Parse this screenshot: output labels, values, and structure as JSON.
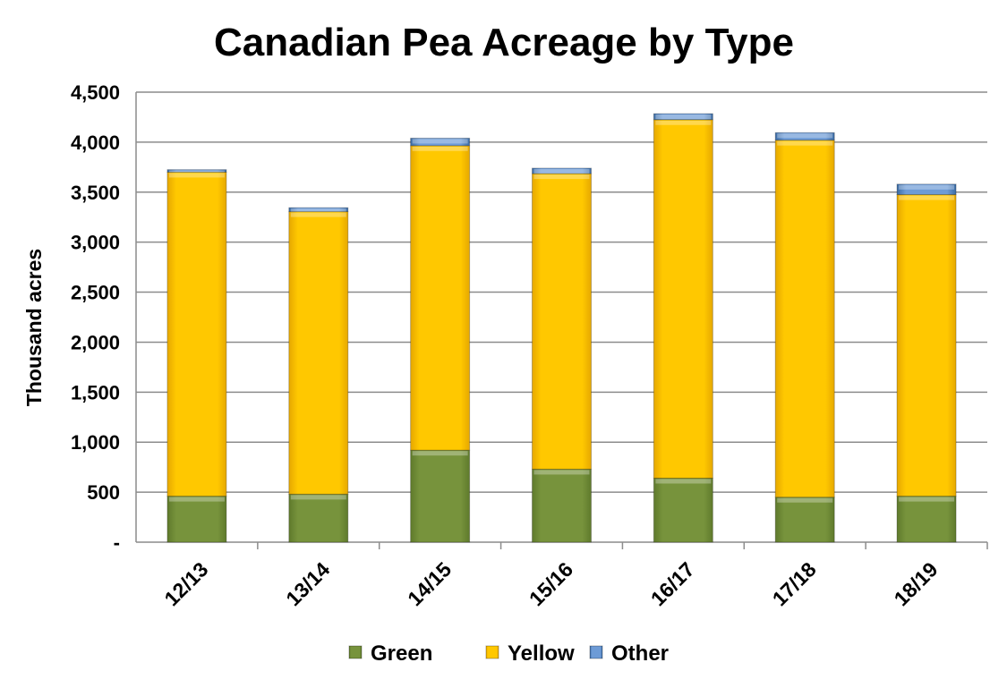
{
  "chart_data": {
    "type": "bar",
    "stacked": true,
    "title": "Canadian Pea Acreage by Type",
    "xlabel": "",
    "ylabel": "Thousand acres",
    "ylim": [
      0,
      4500
    ],
    "yticks": [
      "-",
      "500",
      "1,000",
      "1,500",
      "2,000",
      "2,500",
      "3,000",
      "3,500",
      "4,000",
      "4,500"
    ],
    "grid": true,
    "legend": "bottom",
    "categories": [
      "12/13",
      "13/14",
      "14/15",
      "15/16",
      "16/17",
      "17/18",
      "18/19"
    ],
    "series": [
      {
        "name": "Green",
        "color": "#77933C",
        "values": [
          460,
          480,
          920,
          730,
          640,
          450,
          460
        ]
      },
      {
        "name": "Yellow",
        "color": "#FFC000",
        "values": [
          3240,
          2825,
          3045,
          2955,
          3585,
          3570,
          3015
        ]
      },
      {
        "name": "Other",
        "color": "#4F81BD",
        "values": [
          25,
          40,
          75,
          55,
          60,
          75,
          105
        ]
      }
    ]
  }
}
